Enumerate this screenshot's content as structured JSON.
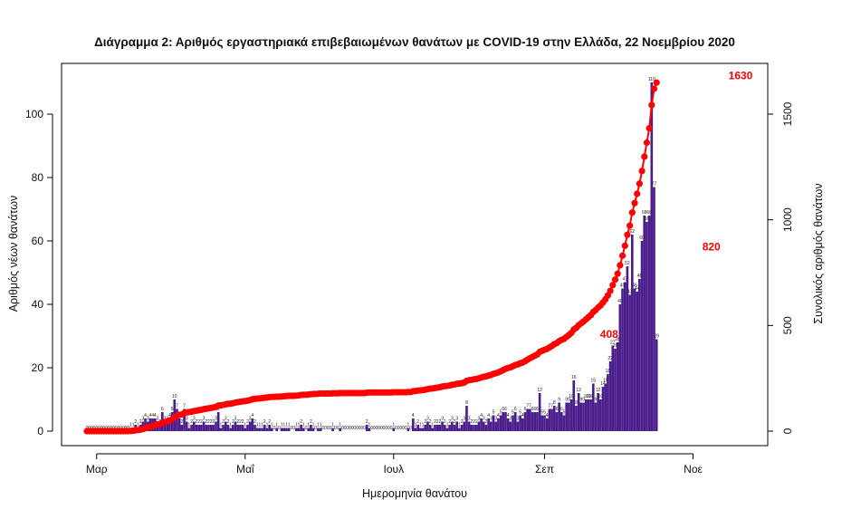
{
  "chart_data": {
    "type": "bar",
    "title": "Διάγραμμα 2: Αριθμός εργαστηριακά επιβεβαιωμένων θανάτων με COVID-19 στην Ελλάδα, 22 Νοεμβρίου 2020",
    "xlabel": "Ημερομηνία θανάτου",
    "ylabel": "Αριθμός νέων θανάτων",
    "ylabel_right": "Συνολικός αριθμός θανάτων",
    "x_start_date": "2020-02-26",
    "x_end_date": "2020-11-22",
    "x_ticks": [
      {
        "date": "2020-03-01",
        "label": "Μαρ"
      },
      {
        "date": "2020-05-01",
        "label": "Μαΐ"
      },
      {
        "date": "2020-07-01",
        "label": "Ιουλ"
      },
      {
        "date": "2020-09-01",
        "label": "Σεπ"
      },
      {
        "date": "2020-11-01",
        "label": "Νοε"
      }
    ],
    "ylim": [
      0,
      112
    ],
    "y_ticks": [
      0,
      20,
      40,
      60,
      80,
      100
    ],
    "ylim_right": [
      0,
      1680
    ],
    "y_ticks_right": [
      0,
      500,
      1000,
      1500
    ],
    "bar_color": "#4b1d8c",
    "line_color": "#ff0000",
    "series": [
      {
        "name": "Αριθμός νέων θανάτων",
        "type": "bar",
        "values": [
          0,
          0,
          0,
          0,
          0,
          0,
          0,
          0,
          0,
          0,
          0,
          0,
          0,
          0,
          0,
          0,
          0,
          0,
          1,
          1,
          2,
          1,
          2,
          3,
          4,
          3,
          4,
          4,
          4,
          3,
          2,
          6,
          3,
          3,
          4,
          6,
          10,
          7,
          4,
          2,
          7,
          3,
          1,
          2,
          3,
          2,
          2,
          2,
          3,
          2,
          2,
          2,
          2,
          3,
          6,
          1,
          2,
          3,
          2,
          1,
          2,
          3,
          2,
          2,
          2,
          1,
          2,
          3,
          4,
          2,
          1,
          1,
          1,
          2,
          1,
          2,
          1,
          0,
          1,
          0,
          1,
          1,
          1,
          1,
          0,
          0,
          1,
          1,
          2,
          1,
          0,
          1,
          2,
          1,
          0,
          1,
          1,
          0,
          0,
          0,
          0,
          1,
          0,
          0,
          1,
          0,
          0,
          0,
          0,
          0,
          0,
          0,
          0,
          0,
          0,
          2,
          1,
          0,
          0,
          0,
          0,
          0,
          0,
          0,
          0,
          0,
          1,
          0,
          0,
          0,
          0,
          0,
          1,
          0,
          4,
          1,
          2,
          1,
          1,
          2,
          3,
          2,
          1,
          2,
          2,
          2,
          3,
          2,
          1,
          2,
          3,
          2,
          3,
          1,
          2,
          3,
          8,
          3,
          2,
          2,
          2,
          3,
          4,
          3,
          2,
          4,
          3,
          5,
          3,
          4,
          5,
          6,
          6,
          4,
          3,
          5,
          6,
          3,
          5,
          4,
          6,
          7,
          7,
          6,
          6,
          6,
          12,
          5,
          5,
          4,
          7,
          7,
          8,
          6,
          9,
          6,
          5,
          9,
          9,
          10,
          16,
          8,
          12,
          9,
          9,
          10,
          10,
          10,
          15,
          9,
          12,
          10,
          14,
          15,
          18,
          22,
          27,
          26,
          28,
          40,
          45,
          47,
          52,
          43,
          62,
          45,
          44,
          48,
          60,
          68,
          66,
          68,
          110,
          77,
          29
        ],
        "labels": [
          0,
          0,
          0,
          0,
          0,
          0,
          0,
          0,
          0,
          0,
          0,
          0,
          0,
          0,
          0,
          0,
          0,
          0,
          1,
          1,
          2,
          1,
          2,
          3,
          4,
          3,
          4,
          4,
          4,
          3,
          2,
          6,
          3,
          3,
          4,
          6,
          10,
          7,
          4,
          2,
          7,
          3,
          1,
          2,
          3,
          2,
          2,
          2,
          3,
          2,
          2,
          2,
          2,
          3,
          6,
          1,
          2,
          3,
          2,
          1,
          2,
          3,
          2,
          2,
          2,
          1,
          2,
          3,
          4,
          2,
          1,
          1,
          1,
          2,
          1,
          2,
          1,
          0,
          1,
          0,
          1,
          1,
          1,
          1,
          0,
          0,
          1,
          1,
          2,
          1,
          0,
          1,
          2,
          1,
          0,
          1,
          1,
          0,
          0,
          0,
          0,
          1,
          0,
          0,
          1,
          0,
          0,
          0,
          0,
          0,
          0,
          0,
          0,
          0,
          0,
          2,
          1,
          0,
          0,
          0,
          0,
          0,
          0,
          0,
          0,
          0,
          1,
          0,
          0,
          0,
          0,
          0,
          1,
          0,
          4,
          1,
          2,
          1,
          1,
          2,
          3,
          2,
          1,
          2,
          2,
          2,
          3,
          2,
          1,
          2,
          3,
          2,
          3,
          1,
          2,
          3,
          8,
          3,
          2,
          2,
          2,
          3,
          4,
          3,
          2,
          4,
          3,
          5,
          3,
          4,
          5,
          6,
          6,
          4,
          3,
          5,
          6,
          3,
          5,
          4,
          6,
          7,
          7,
          6,
          6,
          6,
          12,
          5,
          5,
          4,
          7,
          7,
          8,
          6,
          9,
          6,
          5,
          9,
          9,
          10,
          16,
          8,
          12,
          9,
          9,
          10,
          10,
          10,
          15,
          9,
          12,
          10,
          14,
          15,
          18,
          22,
          27,
          26,
          28,
          40,
          45,
          47,
          52,
          43,
          62,
          45,
          44,
          48,
          60,
          68,
          66,
          68,
          110,
          77,
          29
        ]
      },
      {
        "name": "Συνολικός αριθμός θανάτων",
        "type": "line",
        "axis": "right"
      }
    ],
    "highlight_labels": [
      {
        "date": "2020-09-29",
        "value": 408,
        "text": "408"
      },
      {
        "date": "2020-11-10",
        "value": 820,
        "text": "820"
      },
      {
        "date": "2020-11-22",
        "value": 1630,
        "text": "1630"
      }
    ]
  }
}
